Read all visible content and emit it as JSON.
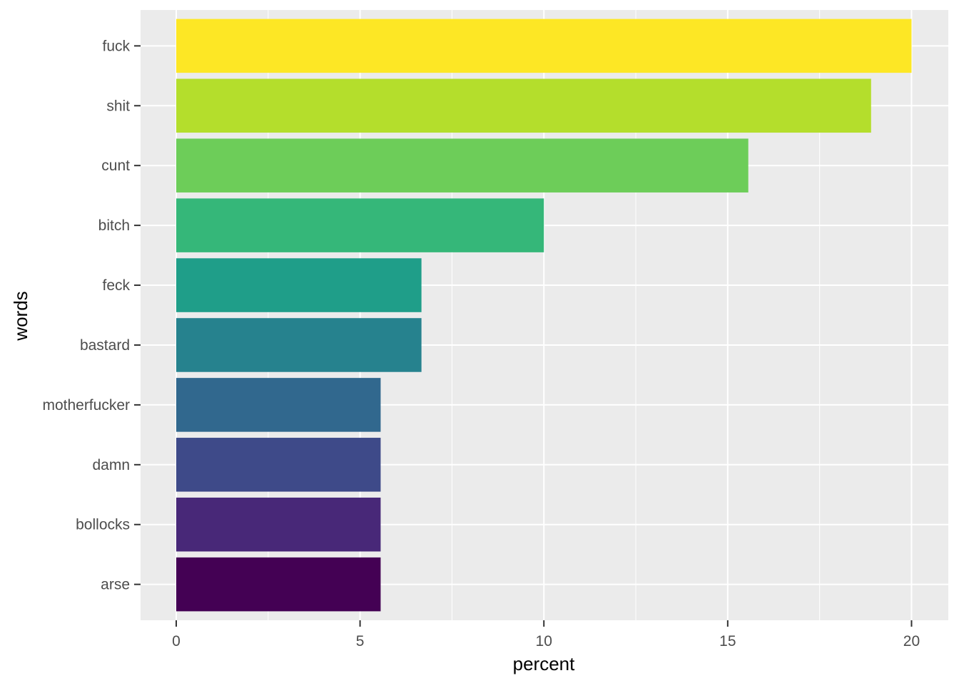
{
  "chart_data": {
    "type": "bar",
    "orientation": "horizontal",
    "categories": [
      "fuck",
      "shit",
      "cunt",
      "bitch",
      "feck",
      "bastard",
      "motherfucker",
      "damn",
      "bollocks",
      "arse"
    ],
    "values": [
      20.0,
      18.9,
      15.56,
      10.0,
      6.67,
      6.67,
      5.56,
      5.56,
      5.56,
      5.56
    ],
    "colors": [
      "#FDE725",
      "#B4DE2C",
      "#6DCD59",
      "#35B779",
      "#1F9E89",
      "#26828E",
      "#31688E",
      "#3E4A89",
      "#482878",
      "#440154"
    ],
    "xlabel": "percent",
    "ylabel": "words",
    "xlim": [
      -0.97,
      21.0
    ],
    "xticks": [
      0,
      5,
      10,
      15,
      20
    ],
    "xtick_labels": [
      "0",
      "5",
      "10",
      "15",
      "20"
    ],
    "grid": true,
    "background": "#EBEBEB",
    "gridline_color": "#FFFFFF",
    "legend": "none"
  }
}
